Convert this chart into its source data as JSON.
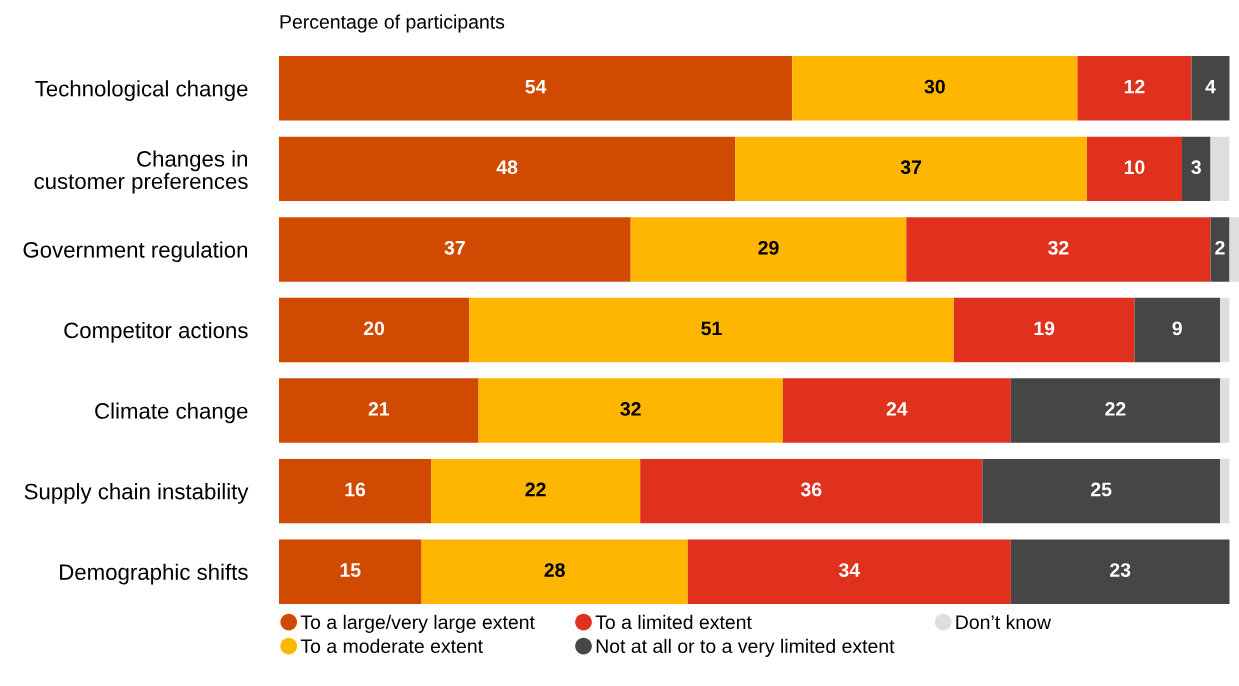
{
  "chart_data": {
    "type": "bar",
    "orientation": "horizontal",
    "stacked": true,
    "title": "Percentage of participants",
    "categories": [
      "Technological change",
      "Changes in\ncustomer preferences",
      "Government regulation",
      "Competitor actions",
      "Climate change",
      "Supply chain instability",
      "Demographic shifts"
    ],
    "series": [
      {
        "name": "To a large/very large extent",
        "color": "#d04a02",
        "values": [
          54,
          48,
          37,
          20,
          21,
          16,
          15
        ],
        "value_labels": [
          "54",
          "48",
          "37",
          "20",
          "21",
          "16",
          "15"
        ]
      },
      {
        "name": "To a moderate extent",
        "color": "#ffb600",
        "values": [
          30,
          37,
          29,
          51,
          32,
          22,
          28
        ],
        "value_labels": [
          "30",
          "37",
          "29",
          "51",
          "32",
          "22",
          "28"
        ]
      },
      {
        "name": "To a limited extent",
        "color": "#e0301e",
        "values": [
          12,
          10,
          32,
          19,
          24,
          36,
          34
        ],
        "value_labels": [
          "12",
          "10",
          "32",
          "19",
          "24",
          "36",
          "34"
        ]
      },
      {
        "name": "Not at all or to a very limited extent",
        "color": "#464646",
        "values": [
          4,
          3,
          2,
          9,
          22,
          25,
          23
        ],
        "value_labels": [
          "4",
          "3",
          "2",
          "9",
          "22",
          "25",
          "23"
        ]
      },
      {
        "name": "Don’t know",
        "color": "#dedede",
        "values": [
          0,
          2,
          1,
          1,
          1,
          1,
          0
        ]
      }
    ],
    "legend": "bottom"
  }
}
